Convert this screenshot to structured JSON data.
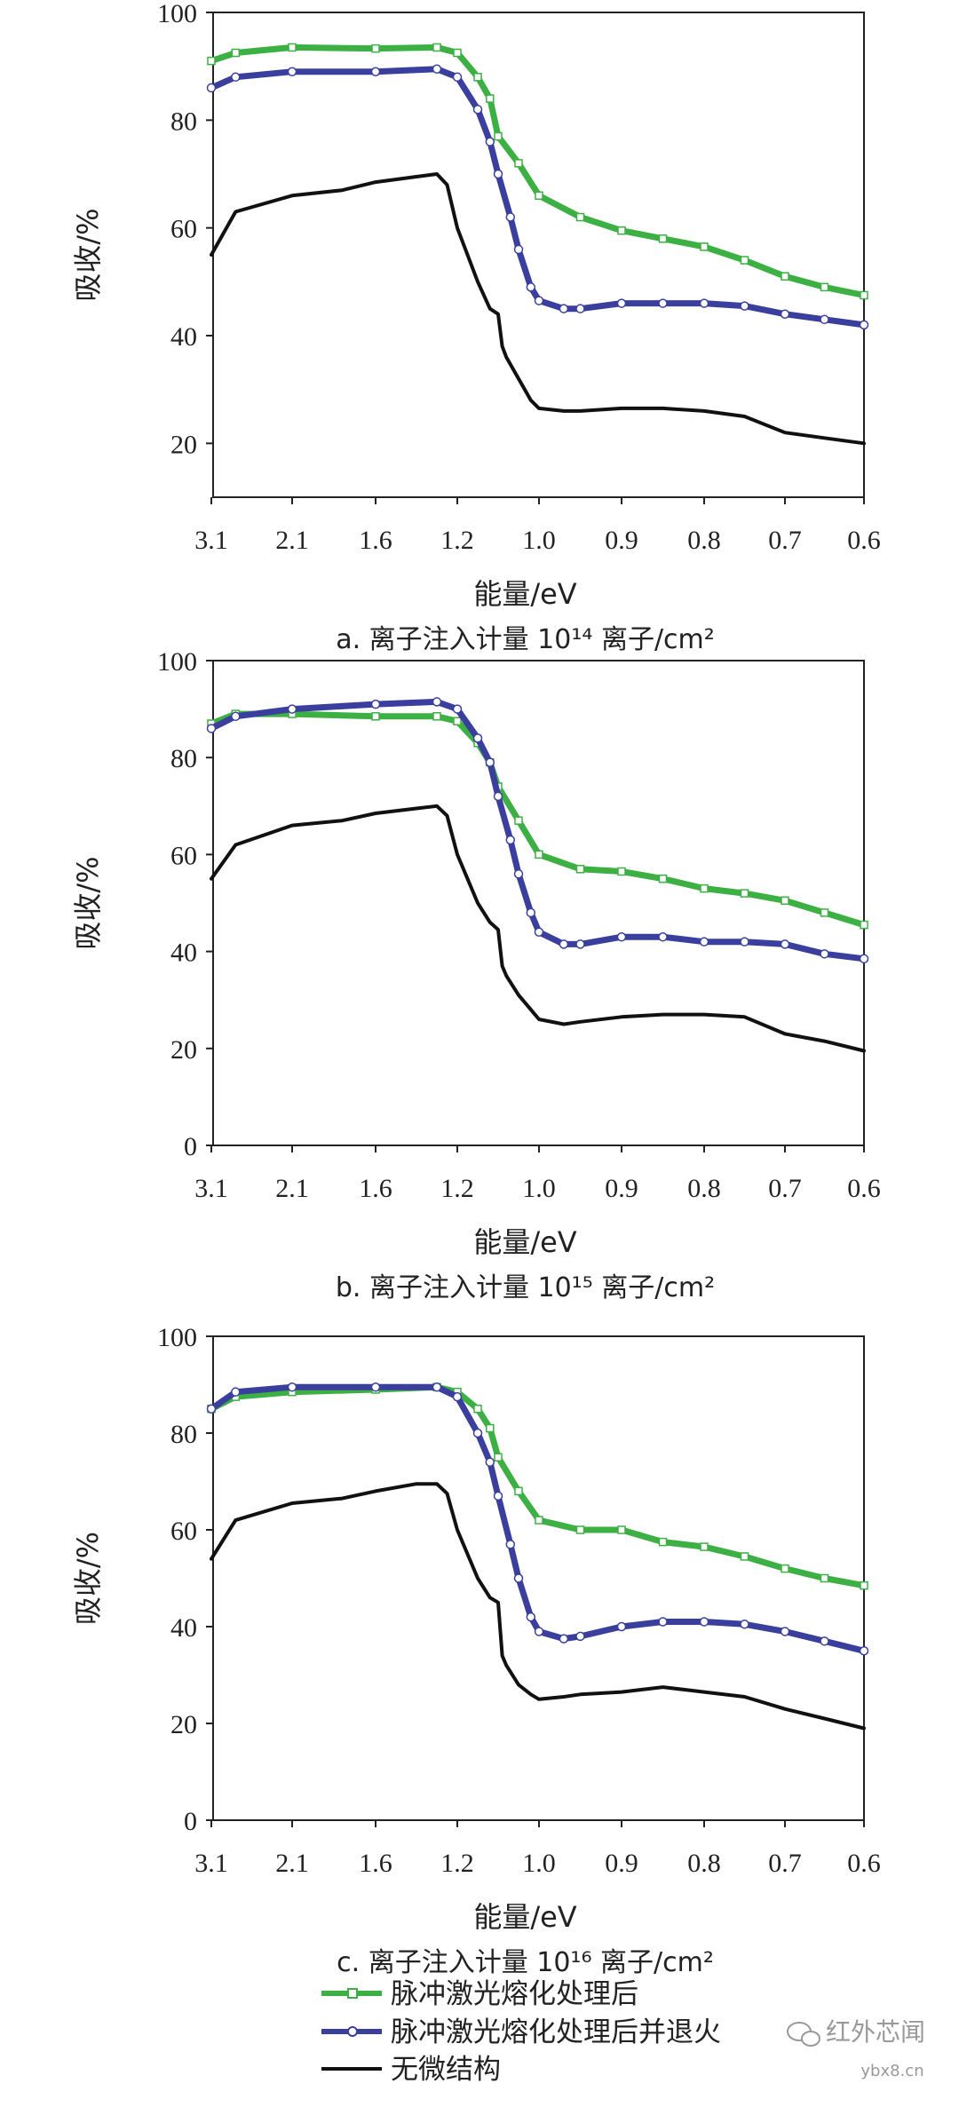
{
  "chart_data": [
    {
      "type": "line",
      "panel": "a",
      "caption": "a. 离子注入计量 10¹⁴ 离子/cm²",
      "xlabel": "能量/eV",
      "ylabel": "吸收/%",
      "x_ticks": [
        "3.1",
        "2.1",
        "1.6",
        "1.2",
        "1.0",
        "0.9",
        "0.8",
        "0.7",
        "0.6"
      ],
      "y_ticks": [
        20,
        40,
        60,
        80,
        100
      ],
      "ylim": [
        10,
        100
      ],
      "x_scale": "1/energy",
      "series": [
        {
          "name": "脉冲激光熔化处理后",
          "x": [
            3.1,
            2.8,
            2.1,
            1.6,
            1.3,
            1.2,
            1.15,
            1.12,
            1.1,
            1.05,
            1.0,
            0.95,
            0.9,
            0.85,
            0.8,
            0.75,
            0.7,
            0.65,
            0.6
          ],
          "values": [
            91,
            92.5,
            93.5,
            93.3,
            93.5,
            92.5,
            88,
            84,
            77,
            72,
            66,
            62,
            59.5,
            58,
            56.5,
            54,
            51,
            49,
            47.5
          ]
        },
        {
          "name": "脉冲激光熔化处理后并退火",
          "x": [
            3.1,
            2.8,
            2.1,
            1.6,
            1.3,
            1.2,
            1.15,
            1.12,
            1.1,
            1.07,
            1.05,
            1.02,
            1.0,
            0.97,
            0.95,
            0.9,
            0.85,
            0.8,
            0.75,
            0.7,
            0.65,
            0.6
          ],
          "values": [
            86,
            88,
            89,
            89,
            89.5,
            88,
            82,
            76,
            70,
            62,
            56,
            49,
            46.5,
            45,
            45,
            46,
            46,
            46,
            45.5,
            44,
            43,
            42
          ]
        },
        {
          "name": "无微结构",
          "x": [
            3.1,
            2.8,
            2.1,
            1.8,
            1.6,
            1.4,
            1.3,
            1.25,
            1.2,
            1.15,
            1.12,
            1.1,
            1.09,
            1.08,
            1.05,
            1.02,
            1.0,
            0.97,
            0.95,
            0.9,
            0.85,
            0.8,
            0.75,
            0.7,
            0.65,
            0.6
          ],
          "values": [
            55,
            63,
            66,
            67,
            68.5,
            69.5,
            70,
            68,
            60,
            50,
            45,
            44,
            38,
            36,
            32,
            28,
            26.5,
            26,
            26,
            26.5,
            26.5,
            26,
            25,
            22,
            21,
            20
          ]
        }
      ]
    },
    {
      "type": "line",
      "panel": "b",
      "caption": "b. 离子注入计量 10¹⁵ 离子/cm²",
      "xlabel": "能量/eV",
      "ylabel": "吸收/%",
      "x_ticks": [
        "3.1",
        "2.1",
        "1.6",
        "1.2",
        "1.0",
        "0.9",
        "0.8",
        "0.7",
        "0.6"
      ],
      "y_ticks": [
        0,
        20,
        40,
        60,
        80,
        100
      ],
      "ylim": [
        0,
        100
      ],
      "x_scale": "1/energy",
      "series": [
        {
          "name": "脉冲激光熔化处理后",
          "x": [
            3.1,
            2.8,
            2.1,
            1.6,
            1.3,
            1.2,
            1.15,
            1.12,
            1.1,
            1.05,
            1.0,
            0.95,
            0.9,
            0.85,
            0.8,
            0.75,
            0.7,
            0.65,
            0.6
          ],
          "values": [
            87,
            89,
            89,
            88.5,
            88.5,
            87.5,
            83,
            79,
            74,
            67,
            60,
            57,
            56.5,
            55,
            53,
            52,
            50.5,
            48,
            45.5
          ]
        },
        {
          "name": "脉冲激光熔化处理后并退火",
          "x": [
            3.1,
            2.8,
            2.1,
            1.6,
            1.3,
            1.2,
            1.15,
            1.12,
            1.1,
            1.07,
            1.05,
            1.02,
            1.0,
            0.97,
            0.95,
            0.9,
            0.85,
            0.8,
            0.75,
            0.7,
            0.65,
            0.6
          ],
          "values": [
            86,
            88.5,
            90,
            91,
            91.5,
            90,
            84,
            79,
            72,
            63,
            56,
            48,
            44,
            41.5,
            41.5,
            43,
            43,
            42,
            42,
            41.5,
            39.5,
            38.5
          ]
        },
        {
          "name": "无微结构",
          "x": [
            3.1,
            2.8,
            2.1,
            1.8,
            1.6,
            1.4,
            1.3,
            1.25,
            1.2,
            1.15,
            1.12,
            1.1,
            1.09,
            1.08,
            1.05,
            1.02,
            1.0,
            0.97,
            0.95,
            0.9,
            0.85,
            0.8,
            0.75,
            0.7,
            0.65,
            0.6
          ],
          "values": [
            55,
            62,
            66,
            67,
            68.5,
            69.5,
            70,
            68,
            60,
            50,
            46,
            44.5,
            37,
            35,
            31,
            28,
            26,
            25,
            25.5,
            26.5,
            27,
            27,
            26.5,
            23,
            21.5,
            19.5
          ]
        }
      ]
    },
    {
      "type": "line",
      "panel": "c",
      "caption": "c. 离子注入计量 10¹⁶ 离子/cm²",
      "xlabel": "能量/eV",
      "ylabel": "吸收/%",
      "x_ticks": [
        "3.1",
        "2.1",
        "1.6",
        "1.2",
        "1.0",
        "0.9",
        "0.8",
        "0.7",
        "0.6"
      ],
      "y_ticks": [
        0,
        20,
        40,
        60,
        80,
        100
      ],
      "ylim": [
        0,
        100
      ],
      "x_scale": "1/energy",
      "series": [
        {
          "name": "脉冲激光熔化处理后",
          "x": [
            3.1,
            2.8,
            2.1,
            1.6,
            1.3,
            1.2,
            1.15,
            1.12,
            1.1,
            1.05,
            1.0,
            0.95,
            0.9,
            0.85,
            0.8,
            0.75,
            0.7,
            0.65,
            0.6
          ],
          "values": [
            85,
            87.5,
            88.5,
            89,
            89.5,
            88.5,
            85,
            81,
            75,
            68,
            62,
            60,
            60,
            57.5,
            56.5,
            54.5,
            52,
            50,
            48.5
          ]
        },
        {
          "name": "脉冲激光熔化处理后并退火",
          "x": [
            3.1,
            2.8,
            2.1,
            1.6,
            1.3,
            1.2,
            1.15,
            1.12,
            1.1,
            1.07,
            1.05,
            1.02,
            1.0,
            0.97,
            0.95,
            0.9,
            0.85,
            0.8,
            0.75,
            0.7,
            0.65,
            0.6
          ],
          "values": [
            85,
            88.5,
            89.5,
            89.5,
            89.5,
            87.5,
            80,
            74,
            67,
            57,
            50,
            42,
            39,
            37.5,
            38,
            40,
            41,
            41,
            40.5,
            39,
            37,
            35
          ]
        },
        {
          "name": "无微结构",
          "x": [
            3.1,
            2.8,
            2.1,
            1.8,
            1.6,
            1.4,
            1.3,
            1.25,
            1.2,
            1.15,
            1.12,
            1.1,
            1.09,
            1.08,
            1.05,
            1.02,
            1.0,
            0.97,
            0.95,
            0.9,
            0.85,
            0.8,
            0.75,
            0.7,
            0.65,
            0.6
          ],
          "values": [
            54,
            62,
            65.5,
            66.5,
            68,
            69.5,
            69.5,
            67.5,
            60,
            50,
            46,
            45,
            34,
            32,
            28,
            26,
            25,
            25.5,
            26,
            26.5,
            27.5,
            26.5,
            25.5,
            23,
            21,
            19
          ]
        }
      ]
    }
  ],
  "legend": [
    {
      "label": "脉冲激光熔化处理后",
      "color": "#3cb043",
      "marker": "square"
    },
    {
      "label": "脉冲激光熔化处理后并退火",
      "color": "#3a3f9e",
      "marker": "circle"
    },
    {
      "label": "无微结构",
      "color": "#111111",
      "marker": "none"
    }
  ],
  "colors": {
    "green": "#3cb043",
    "blue": "#3a3f9e",
    "black": "#111111",
    "axis": "#222222"
  },
  "watermark": {
    "brand": "红外芯闻",
    "site": "ybx8.cn",
    "icon": "wechat-icon"
  }
}
